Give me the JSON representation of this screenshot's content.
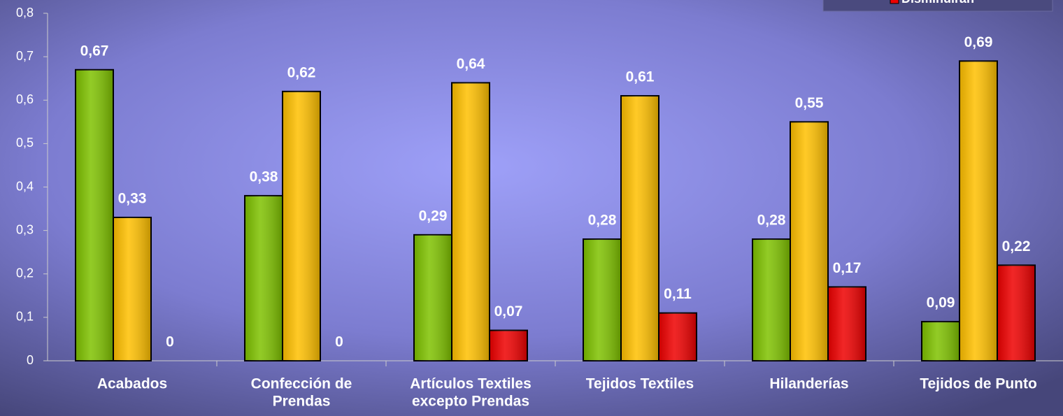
{
  "chart_data": {
    "type": "bar",
    "categories": [
      [
        "Acabados"
      ],
      [
        "Confección de",
        "Prendas"
      ],
      [
        "Artículos Textiles",
        "excepto Prendas"
      ],
      [
        "Tejidos Textiles"
      ],
      [
        "Hilanderías"
      ],
      [
        "Tejidos de Punto"
      ]
    ],
    "series": [
      {
        "color": "#7fc200",
        "values": [
          0.67,
          0.38,
          0.29,
          0.28,
          0.28,
          0.09
        ],
        "value_labels": [
          "0,67",
          "0,38",
          "0,29",
          "0,28",
          "0,28",
          "0,09"
        ]
      },
      {
        "color": "#ffc000",
        "values": [
          0.33,
          0.62,
          0.64,
          0.61,
          0.55,
          0.69
        ],
        "value_labels": [
          "0,33",
          "0,62",
          "0,64",
          "0,61",
          "0,55",
          "0,69"
        ]
      },
      {
        "name": "Disminuirán",
        "color": "#ee0000",
        "values": [
          0,
          0,
          0.07,
          0.11,
          0.17,
          0.22
        ],
        "value_labels": [
          "0",
          "0",
          "0,07",
          "0,11",
          "0,17",
          "0,22"
        ]
      }
    ],
    "ylim": [
      0,
      0.8
    ],
    "yticks": [
      0,
      {
        "value": 0.1,
        "label": "0,1"
      },
      {
        "value": 0.2,
        "label": "0,2"
      },
      {
        "value": 0.3,
        "label": "0,3"
      },
      {
        "value": 0.4,
        "label": "0,4"
      },
      {
        "value": 0.5,
        "label": "0,5"
      },
      {
        "value": 0.6,
        "label": "0,6"
      },
      {
        "value": 0.7,
        "label": "0,7"
      },
      {
        "value": 0.8,
        "label": "0,8"
      }
    ],
    "legend": "top-right"
  }
}
